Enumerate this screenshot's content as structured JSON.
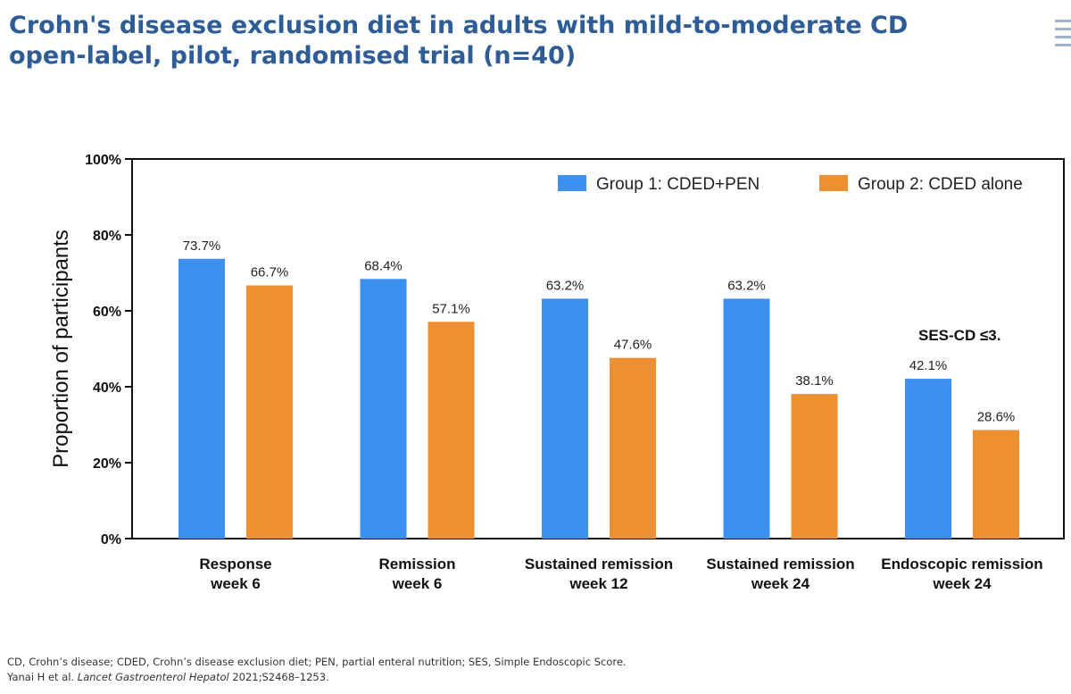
{
  "title": {
    "line1": "Crohn's disease exclusion diet in adults with mild-to-moderate CD",
    "line2": "open-label, pilot, randomised trial (n=40)"
  },
  "colors": {
    "title": "#2e5c97",
    "group1": "#3d8ff0",
    "group2": "#ee8f32"
  },
  "chart_data": {
    "type": "bar",
    "ylabel": "Proportion of participants",
    "xlabel": "",
    "ylim": [
      0,
      100
    ],
    "yticks": [
      "0%",
      "20%",
      "40%",
      "60%",
      "80%",
      "100%"
    ],
    "ytick_values": [
      0,
      20,
      40,
      60,
      80,
      100
    ],
    "grid": false,
    "legend_position": "top-right",
    "categories": [
      [
        "Response",
        "week 6"
      ],
      [
        "Remission",
        "week 6"
      ],
      [
        "Sustained remission",
        "week 12"
      ],
      [
        "Sustained remission",
        "week 24"
      ],
      [
        "Endoscopic remission",
        "week 24"
      ]
    ],
    "series": [
      {
        "name": "Group 1: CDED+PEN",
        "values": [
          73.7,
          68.4,
          63.2,
          63.2,
          42.1
        ],
        "labels": [
          "73.7%",
          "68.4%",
          "63.2%",
          "63.2%",
          "42.1%"
        ]
      },
      {
        "name": "Group 2: CDED alone",
        "values": [
          66.7,
          57.1,
          47.6,
          38.1,
          28.6
        ],
        "labels": [
          "66.7%",
          "57.1%",
          "47.6%",
          "38.1%",
          "28.6%"
        ]
      }
    ],
    "annotation": "SES-CD ≤3."
  },
  "footnotes": {
    "abbreviations": "CD, Crohn’s disease; CDED, Crohn’s disease exclusion diet; PEN, partial enteral nutrition; SES, Simple Endoscopic Score.",
    "citation_authors": "Yanai H et al.",
    "citation_journal": "Lancet Gastroenterol Hepatol",
    "citation_details": "2021;S2468–1253."
  }
}
